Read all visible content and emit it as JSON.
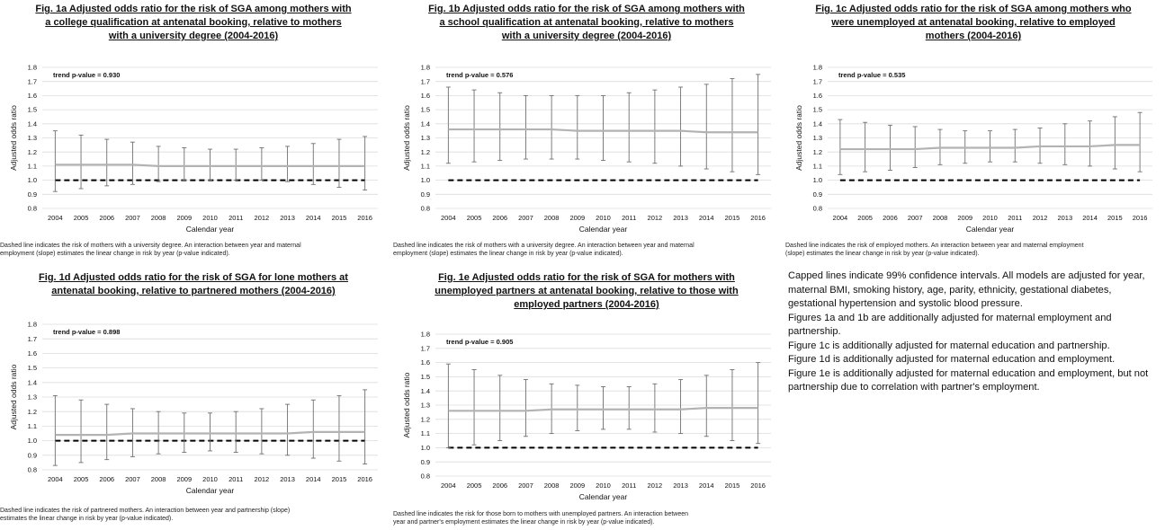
{
  "chart_data": [
    {
      "id": "1a",
      "type": "line",
      "title_lines": [
        "Fig. 1a Adjusted odds ratio for the risk of SGA among mothers with",
        "a college qualification at antenatal booking, relative to mothers",
        "with a university degree (2004-2016)"
      ],
      "xlabel": "Calendar year",
      "ylabel": "Adjusted odds ratio",
      "ylim": [
        0.8,
        1.8
      ],
      "yticks": [
        "0.8",
        "0.9",
        "1.0",
        "1.1",
        "1.2",
        "1.3",
        "1.4",
        "1.5",
        "1.6",
        "1.7",
        "1.8"
      ],
      "categories": [
        "2004",
        "2005",
        "2006",
        "2007",
        "2008",
        "2009",
        "2010",
        "2011",
        "2012",
        "2013",
        "2014",
        "2015",
        "2016"
      ],
      "series": [
        {
          "values": [
            1.11,
            1.11,
            1.11,
            1.11,
            1.1,
            1.1,
            1.1,
            1.1,
            1.1,
            1.1,
            1.1,
            1.1,
            1.1
          ]
        }
      ],
      "ci_lower": [
        0.92,
        0.94,
        0.96,
        0.97,
        0.99,
        1.0,
        1.0,
        1.0,
        1.0,
        0.99,
        0.97,
        0.95,
        0.93
      ],
      "ci_upper": [
        1.35,
        1.32,
        1.29,
        1.27,
        1.24,
        1.23,
        1.22,
        1.22,
        1.23,
        1.24,
        1.26,
        1.29,
        1.31
      ],
      "reference": 1.0,
      "annotation": "trend p-value  = 0.930",
      "note_lines": [
        "Dashed line indicates the risk of mothers with a university degree. An interaction between  year and maternal",
        "employment (slope) estimates the linear change in risk by year (p-value indicated)."
      ]
    },
    {
      "id": "1b",
      "type": "line",
      "title_lines": [
        "Fig. 1b Adjusted odds ratio for the risk of SGA among mothers with",
        "a school qualification at antenatal booking, relative to mothers",
        "with a university degree (2004-2016)"
      ],
      "xlabel": "Calendar year",
      "ylabel": "Adjusted odds ratio",
      "ylim": [
        0.8,
        1.8
      ],
      "yticks": [
        "0.8",
        "0.9",
        "1.0",
        "1.1",
        "1.2",
        "1.3",
        "1.4",
        "1.5",
        "1.6",
        "1.7",
        "1.8"
      ],
      "categories": [
        "2004",
        "2005",
        "2006",
        "2007",
        "2008",
        "2009",
        "2010",
        "2011",
        "2012",
        "2013",
        "2014",
        "2015",
        "2016"
      ],
      "series": [
        {
          "values": [
            1.36,
            1.36,
            1.36,
            1.36,
            1.36,
            1.35,
            1.35,
            1.35,
            1.35,
            1.35,
            1.34,
            1.34,
            1.34
          ]
        }
      ],
      "ci_lower": [
        1.12,
        1.13,
        1.14,
        1.15,
        1.15,
        1.15,
        1.14,
        1.13,
        1.12,
        1.1,
        1.08,
        1.06,
        1.04
      ],
      "ci_upper": [
        1.66,
        1.64,
        1.62,
        1.6,
        1.6,
        1.6,
        1.6,
        1.62,
        1.64,
        1.66,
        1.68,
        1.72,
        1.75
      ],
      "reference": 1.0,
      "annotation": "trend p-value  = 0.576",
      "note_lines": [
        "Dashed line indicates the risk of mothers with a university degree. An interaction between  year and maternal",
        "employment (slope) estimates the linear change in risk by year (p-value indicated)."
      ]
    },
    {
      "id": "1c",
      "type": "line",
      "title_lines": [
        "Fig. 1c Adjusted odds ratio for the risk of SGA among mothers who",
        "were unemployed at antenatal booking, relative to employed",
        "mothers (2004-2016)"
      ],
      "xlabel": "Calendar year",
      "ylabel": "Adjusted odds ratio",
      "ylim": [
        0.8,
        1.8
      ],
      "yticks": [
        "0.8",
        "0.9",
        "1.0",
        "1.1",
        "1.2",
        "1.3",
        "1.4",
        "1.5",
        "1.6",
        "1.7",
        "1.8"
      ],
      "categories": [
        "2004",
        "2005",
        "2006",
        "2007",
        "2008",
        "2009",
        "2010",
        "2011",
        "2012",
        "2013",
        "2014",
        "2015",
        "2016"
      ],
      "series": [
        {
          "values": [
            1.22,
            1.22,
            1.22,
            1.22,
            1.23,
            1.23,
            1.23,
            1.23,
            1.24,
            1.24,
            1.24,
            1.25,
            1.25
          ]
        }
      ],
      "ci_lower": [
        1.04,
        1.06,
        1.07,
        1.09,
        1.11,
        1.12,
        1.13,
        1.13,
        1.12,
        1.11,
        1.1,
        1.08,
        1.06
      ],
      "ci_upper": [
        1.43,
        1.41,
        1.39,
        1.38,
        1.36,
        1.35,
        1.35,
        1.36,
        1.37,
        1.4,
        1.42,
        1.45,
        1.48
      ],
      "reference": 1.0,
      "annotation": "trend p-value  = 0.535",
      "note_lines": [
        "Dashed line indicates the risk of employed mothers. An interaction between year and maternal employment",
        "(slope) estimates the linear change in risk by year (p-value indicated)."
      ]
    },
    {
      "id": "1d",
      "type": "line",
      "title_lines": [
        "Fig. 1d Adjusted odds ratio for the risk of SGA for lone mothers at",
        "antenatal booking, relative to partnered mothers (2004-2016)"
      ],
      "xlabel": "Calendar year",
      "ylabel": "Adjusted odds ratio",
      "ylim": [
        0.8,
        1.8
      ],
      "yticks": [
        "0.8",
        "0.9",
        "1.0",
        "1.1",
        "1.2",
        "1.3",
        "1.4",
        "1.5",
        "1.6",
        "1.7",
        "1.8"
      ],
      "categories": [
        "2004",
        "2005",
        "2006",
        "2007",
        "2008",
        "2009",
        "2010",
        "2011",
        "2012",
        "2013",
        "2014",
        "2015",
        "2016"
      ],
      "series": [
        {
          "values": [
            1.04,
            1.04,
            1.04,
            1.05,
            1.05,
            1.05,
            1.05,
            1.05,
            1.05,
            1.05,
            1.06,
            1.06,
            1.06
          ]
        }
      ],
      "ci_lower": [
        0.83,
        0.85,
        0.87,
        0.89,
        0.91,
        0.92,
        0.93,
        0.92,
        0.91,
        0.9,
        0.88,
        0.86,
        0.84
      ],
      "ci_upper": [
        1.31,
        1.28,
        1.25,
        1.22,
        1.2,
        1.19,
        1.19,
        1.2,
        1.22,
        1.25,
        1.28,
        1.31,
        1.35
      ],
      "reference": 1.0,
      "annotation": "trend p-value = 0.898",
      "note_lines": [
        "Dashed line indicates the risk of partnered mothers. An interaction between  year and partnership (slope)",
        "estimates the linear change in risk by year (p-value indicated)."
      ]
    },
    {
      "id": "1e",
      "type": "line",
      "title_lines": [
        "Fig. 1e Adjusted odds ratio for the risk of SGA for mothers with",
        "unemployed partners at antenatal booking, relative to those with",
        "employed partners (2004-2016)"
      ],
      "xlabel": "Calendar year",
      "ylabel": "Adjusted odds ratio",
      "ylim": [
        0.8,
        1.8
      ],
      "yticks": [
        "0.8",
        "0.9",
        "1.0",
        "1.1",
        "1.2",
        "1.3",
        "1.4",
        "1.5",
        "1.6",
        "1.7",
        "1.8"
      ],
      "categories": [
        "2004",
        "2005",
        "2006",
        "2007",
        "2008",
        "2009",
        "2010",
        "2011",
        "2012",
        "2013",
        "2014",
        "2015",
        "2016"
      ],
      "series": [
        {
          "values": [
            1.26,
            1.26,
            1.26,
            1.26,
            1.27,
            1.27,
            1.27,
            1.27,
            1.27,
            1.27,
            1.28,
            1.28,
            1.28
          ]
        }
      ],
      "ci_lower": [
        1.0,
        1.02,
        1.05,
        1.08,
        1.1,
        1.12,
        1.13,
        1.13,
        1.11,
        1.1,
        1.08,
        1.05,
        1.03
      ],
      "ci_upper": [
        1.59,
        1.55,
        1.51,
        1.48,
        1.45,
        1.44,
        1.43,
        1.43,
        1.45,
        1.48,
        1.51,
        1.55,
        1.6
      ],
      "reference": 1.0,
      "annotation": "trend p-value = 0.905",
      "note_lines": [
        "Dashed line indicates the risk for those born to mothers with unemployed partners. An interaction between",
        "year and partner's employment estimates the linear change in risk by year (p-value indicated)."
      ]
    }
  ],
  "general_notes": [
    "Capped lines indicate 99% confidence intervals. All models are adjusted for year,",
    "maternal BMI, smoking history, age, parity, ethnicity, gestational diabetes,",
    "gestational hypertension and systolic blood pressure.",
    "Figures 1a and 1b are additionally adjusted for maternal employment and",
    "partnership.",
    "Figure 1c is additionally adjusted for maternal education and partnership.",
    "Figure 1d is additionally adjusted for maternal education and employment.",
    "Figure 1e is additionally adjusted for maternal education and employment, but not",
    "partnership due to correlation with partner's employment."
  ],
  "colors": {
    "estimate_line": "#b3b3b3",
    "ci_bars": "#6f6f6f",
    "reference_line": "#000000",
    "gridlines": "#dcdcdc"
  }
}
